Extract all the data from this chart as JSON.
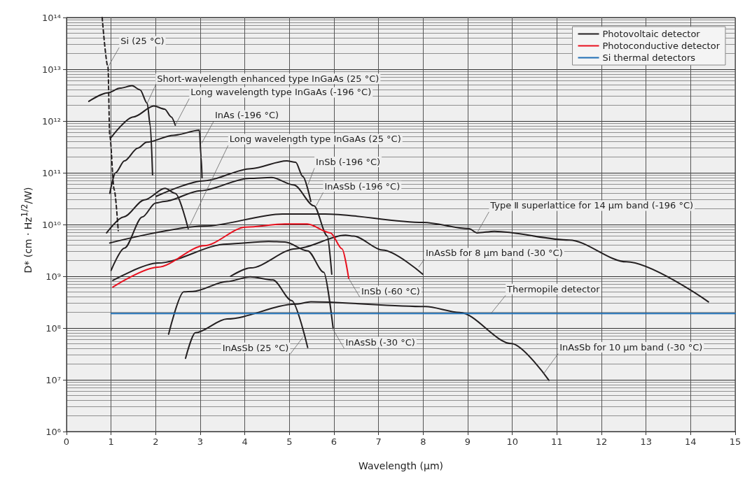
{
  "chart_data": {
    "type": "line",
    "xlabel": "Wavelength (µm)",
    "ylabel": "D* (cm · Hz$^{1/2}$/W)",
    "log": "y",
    "grid": true,
    "legend": "top right",
    "xlim": [
      0,
      15
    ],
    "xticks": [
      0,
      1,
      2,
      3,
      4,
      5,
      6,
      7,
      8,
      9,
      10,
      11,
      12,
      13,
      14,
      15
    ],
    "ylim": [
      1000000.0,
      100000000000000.0
    ],
    "yticks": [
      {
        "value": 1000000.0,
        "label": "10⁶"
      },
      {
        "value": 10000000.0,
        "label": "10⁷"
      },
      {
        "value": 100000000.0,
        "label": "10⁸"
      },
      {
        "value": 1000000000.0,
        "label": "10⁹"
      },
      {
        "value": 10000000000.0,
        "label": "10¹⁰"
      },
      {
        "value": 100000000000.0,
        "label": "10¹¹"
      },
      {
        "value": 1000000000000.0,
        "label": "10¹²"
      },
      {
        "value": 10000000000000.0,
        "label": "10¹³"
      },
      {
        "value": 100000000000000.0,
        "label": "10¹⁴"
      }
    ],
    "series": [
      {
        "name": "Photovoltaic detector",
        "color": "#231f20",
        "x": [
          0.5,
          0.93,
          1.2,
          1.47,
          1.65,
          1.81,
          1.88,
          1.93
        ],
        "values": [
          2400000000000.0,
          3500000000000.0,
          4300000000000.0,
          4800000000000.0,
          4000000000000.0,
          2200000000000.0,
          800000000000.0,
          91000000000.0
        ]
      },
      {
        "color": "#231f20",
        "x": [
          1.0,
          1.5,
          1.96,
          2.2,
          2.35,
          2.44
        ],
        "values": [
          480000000000.0,
          1200000000000.0,
          1950000000000.0,
          1700000000000.0,
          1200000000000.0,
          830000000000.0
        ]
      },
      {
        "color": "#231f20",
        "x": [
          0.97,
          1.1,
          1.3,
          1.6,
          1.8,
          2.4,
          2.98,
          3.02,
          3.04
        ],
        "values": [
          40000000000.0,
          100000000000.0,
          170000000000.0,
          300000000000.0,
          390000000000.0,
          530000000000.0,
          660000000000.0,
          200000000000.0,
          80000000000.0
        ]
      },
      {
        "color": "#231f20",
        "x": [
          0.9,
          1.28,
          1.75,
          2.21,
          2.44,
          2.73
        ],
        "values": [
          6900000000.0,
          14000000000.0,
          30000000000.0,
          50000000000.0,
          40000000000.0,
          8300000000.0
        ]
      },
      {
        "color": "#231f20",
        "x": [
          2.01,
          3.09,
          4.13,
          4.94,
          5.14,
          5.3,
          5.48
        ],
        "values": [
          35000000000.0,
          70000000000.0,
          120000000000.0,
          170000000000.0,
          160000000000.0,
          85000000000.0,
          28000000000.0
        ]
      },
      {
        "color": "#231f20",
        "x": [
          1.0,
          1.3,
          1.7,
          2.0,
          2.2,
          3.0,
          4.1,
          4.6,
          5.1,
          5.55,
          5.85,
          5.95
        ],
        "values": [
          1300000000.0,
          3500000000.0,
          14000000000.0,
          26000000000.0,
          28000000000.0,
          45000000000.0,
          78000000000.0,
          81000000000.0,
          58000000000.0,
          23000000000.0,
          6000000000.0,
          1100000000.0
        ]
      },
      {
        "color": "#231f20",
        "x": [
          0.97,
          3.09,
          4.84,
          5.8,
          8.0,
          9.03,
          9.21,
          9.6,
          11.28,
          12.56,
          14.4
        ],
        "values": [
          4400000000.0,
          9300000000.0,
          16000000000.0,
          16000000000.0,
          11000000000.0,
          8300000000.0,
          6900000000.0,
          7400000000.0,
          5000000000.0,
          1900000000.0,
          320000000.0
        ]
      },
      {
        "color": "#231f20",
        "x": [
          3.68,
          4.13,
          5.14,
          6.26,
          6.44,
          7.09,
          7.99
        ],
        "values": [
          1000000000.0,
          1450000000.0,
          3400000000.0,
          6200000000.0,
          6000000000.0,
          3200000000.0,
          1100000000.0
        ]
      },
      {
        "color": "#231f20",
        "x": [
          1.04,
          2.05,
          3.6,
          4.53,
          4.9,
          5.41,
          5.77,
          5.98
        ],
        "values": [
          830000000.0,
          1800000000.0,
          4200000000.0,
          4700000000.0,
          4600000000.0,
          3100000000.0,
          1200000000.0,
          100000000.0
        ]
      },
      {
        "color": "#231f20",
        "x": [
          2.29,
          2.63,
          2.83,
          3.6,
          4.12,
          4.63,
          5.05,
          5.41
        ],
        "values": [
          76000000.0,
          500000000.0,
          510000000.0,
          790000000.0,
          980000000.0,
          850000000.0,
          340000000.0,
          42000000.0
        ]
      },
      {
        "color": "#231f20",
        "x": [
          2.67,
          2.89,
          3.6,
          5.14,
          5.48,
          8.05,
          8.82,
          9.98,
          10.82
        ],
        "values": [
          26000000.0,
          81000000.0,
          150000000.0,
          290000000.0,
          320000000.0,
          260000000.0,
          200000000.0,
          50000000.0,
          9800000.0
        ]
      },
      {
        "color": "#231f20",
        "line_style": "dashed",
        "x": [
          0.8,
          0.93,
          0.97,
          1.07,
          1.16
        ],
        "values": [
          100000000000000.0,
          11000000000000.0,
          520000000000.0,
          47000000000.0,
          7600000000.0
        ]
      },
      {
        "name": "Photoconductive detector",
        "color": "#e8101e",
        "x": [
          1.04,
          2.05,
          3.09,
          4.02,
          4.9,
          5.4,
          5.92,
          6.18,
          6.33
        ],
        "values": [
          620000000.0,
          1500000000.0,
          3900000000.0,
          8900000000.0,
          10200000000.0,
          10200000000.0,
          6900000000.0,
          3400000000.0,
          910000000.0
        ]
      },
      {
        "name": "Si thermal detectors",
        "color": "#1f6fb5",
        "x": [
          1,
          15
        ],
        "values": [
          190000000.0,
          190000000.0
        ]
      }
    ],
    "annotations": [
      {
        "text": "Si (25 °C)",
        "x": 0.93,
        "y": 11000000000000.0
      },
      {
        "text": "Short-wavelength enhanced type InGaAs (25 °C)",
        "x": 1.81,
        "y": 2200000000000.0
      },
      {
        "text": "Long wavelength type InGaAs (-196 °C)",
        "x": 2.44,
        "y": 830000000000.0
      },
      {
        "text": "InAs (-196 °C)",
        "x": 3.03,
        "y": 370000000000.0
      },
      {
        "text": "Long wavelength type InGaAs (25 °C)",
        "x": 2.73,
        "y": 8300000000.0
      },
      {
        "text": "InSb (-196 °C)",
        "x": 5.42,
        "y": 60000000000.0
      },
      {
        "text": "InAsSb (-196 °C)",
        "x": 5.6,
        "y": 23000000000.0
      },
      {
        "text": "Type Ⅱ superlattice for 14 µm band (-196 °C)",
        "x": 9.21,
        "y": 6900000000.0
      },
      {
        "text": "InAsSb for 8 µm band (-30 °C)",
        "x": 7.9,
        "y": 1500000000.0
      },
      {
        "text": "InSb (-60 °C)",
        "x": 6.33,
        "y": 910000000.0
      },
      {
        "text": "Thermopile detector",
        "x": 9.52,
        "y": 190000000.0
      },
      {
        "text": "InAsSb (-30 °C)",
        "x": 5.96,
        "y": 100000000.0
      },
      {
        "text": "InAsSb (25 °C)",
        "x": 5.3,
        "y": 66000000.0
      },
      {
        "text": "InAsSb for 10 µm band (-30 °C)",
        "x": 10.7,
        "y": 13000000.0
      }
    ]
  }
}
